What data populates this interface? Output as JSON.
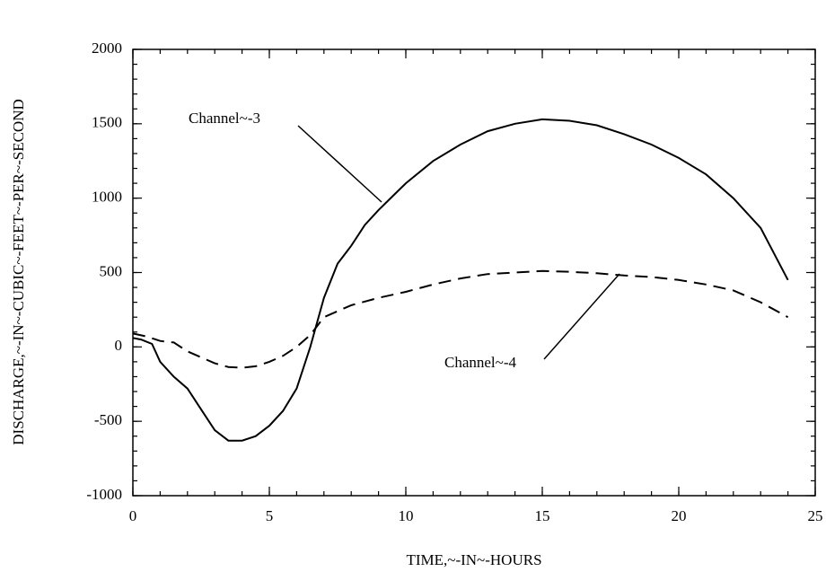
{
  "chart_data": {
    "type": "line",
    "xlabel": "TIME,~-IN~-HOURS",
    "ylabel": "DISCHARGE,~-IN~-CUBIC~-FEET~-PER~-SECOND",
    "xlim": [
      0,
      25
    ],
    "xticks": [
      0,
      5,
      10,
      15,
      20,
      25
    ],
    "xminor": 1,
    "ylim": [
      -1000,
      2000
    ],
    "yticks": [
      -1000,
      -500,
      0,
      500,
      1000,
      1500,
      2000
    ],
    "yminor": 100,
    "series": [
      {
        "name": "Channel~-3",
        "color": "#000000",
        "dash": "none",
        "x": [
          0,
          0.3,
          0.7,
          1,
          1.5,
          2,
          2.5,
          3,
          3.5,
          4,
          4.5,
          5,
          5.5,
          6,
          6.5,
          7,
          7.5,
          8,
          8.5,
          9,
          9.5,
          10,
          11,
          12,
          13,
          14,
          15,
          16,
          17,
          18,
          19,
          20,
          21,
          22,
          23,
          24
        ],
        "values": [
          60,
          50,
          20,
          -100,
          -200,
          -280,
          -420,
          -560,
          -630,
          -630,
          -600,
          -530,
          -430,
          -280,
          0,
          330,
          560,
          680,
          820,
          920,
          1010,
          1100,
          1250,
          1360,
          1450,
          1500,
          1530,
          1520,
          1490,
          1430,
          1360,
          1270,
          1160,
          1000,
          800,
          450
        ]
      },
      {
        "name": "Channel~-4",
        "color": "#000000",
        "dash": "14 8",
        "x": [
          0,
          0.5,
          1,
          1.5,
          2,
          2.5,
          3,
          3.5,
          4,
          4.5,
          5,
          5.5,
          6,
          6.5,
          7,
          8,
          9,
          10,
          11,
          12,
          13,
          14,
          15,
          16,
          17,
          18,
          19,
          20,
          21,
          22,
          23,
          24
        ],
        "values": [
          90,
          70,
          40,
          30,
          -30,
          -70,
          -110,
          -135,
          -140,
          -130,
          -100,
          -60,
          0,
          80,
          200,
          280,
          330,
          370,
          420,
          460,
          490,
          500,
          510,
          505,
          495,
          480,
          470,
          450,
          420,
          380,
          300,
          200
        ]
      }
    ]
  }
}
